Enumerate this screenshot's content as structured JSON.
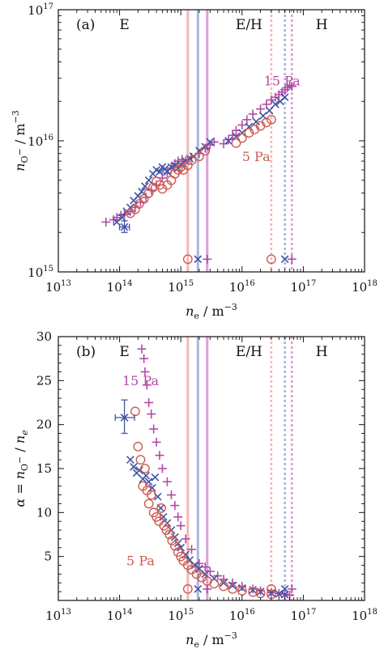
{
  "colors": {
    "pa5": "#d05a52",
    "pa10": "#3f55a4",
    "pa15": "#b24aa8",
    "pa5_line": "#f2b8b5",
    "pa10_line": "#aab4dd",
    "pa15_line": "#dc9fd6"
  },
  "chart_data": [
    {
      "type": "scatter",
      "panel_label": "(a)",
      "x_scale": "log",
      "y_scale": "log",
      "xlim": [
        10000000000000.0,
        1e+18
      ],
      "ylim": [
        1000000000000000.0,
        1e+17
      ],
      "xlabel": {
        "main": "n",
        "sub": "e",
        "unit": " / m",
        "sup": "−3"
      },
      "ylabel": {
        "main": "n",
        "sub": "O",
        "subsup": "−",
        "unit": " / m",
        "sup": "−3"
      },
      "x_ticks": [
        {
          "base": "10",
          "exp": "13"
        },
        {
          "base": "10",
          "exp": "14"
        },
        {
          "base": "10",
          "exp": "15"
        },
        {
          "base": "10",
          "exp": "16"
        },
        {
          "base": "10",
          "exp": "17"
        },
        {
          "base": "10",
          "exp": "18"
        }
      ],
      "y_ticks": [
        {
          "base": "10",
          "exp": "15"
        },
        {
          "base": "10",
          "exp": "16"
        },
        {
          "base": "10",
          "exp": "17"
        }
      ],
      "regions": [
        "E",
        "E/H",
        "H"
      ],
      "series_labels": [
        {
          "text": "15 Pa",
          "series": "pa15",
          "x": 4.5e+16,
          "y": 2.65e+16
        },
        {
          "text": "5 Pa",
          "series": "pa5",
          "x": 1.7e+16,
          "y": 7000000000000000.0
        }
      ],
      "vlines": [
        {
          "x": 1300000000000000.0,
          "series": "pa5",
          "style": "solid"
        },
        {
          "x": 1900000000000000.0,
          "series": "pa10",
          "style": "solid"
        },
        {
          "x": 2700000000000000.0,
          "series": "pa15",
          "style": "solid"
        },
        {
          "x": 3e+16,
          "series": "pa5",
          "style": "dotted"
        },
        {
          "x": 5e+16,
          "series": "pa10",
          "style": "dotted"
        },
        {
          "x": 6.5e+16,
          "series": "pa15",
          "style": "dotted"
        }
      ],
      "threshold_markers": [
        {
          "x": 1300000000000000.0,
          "y": 1250000000000000.0,
          "series": "pa5"
        },
        {
          "x": 1900000000000000.0,
          "y": 1250000000000000.0,
          "series": "pa10"
        },
        {
          "x": 2700000000000000.0,
          "y": 1250000000000000.0,
          "series": "pa15"
        },
        {
          "x": 3e+16,
          "y": 1250000000000000.0,
          "series": "pa5"
        },
        {
          "x": 5e+16,
          "y": 1250000000000000.0,
          "series": "pa10"
        },
        {
          "x": 6.5e+16,
          "y": 1250000000000000.0,
          "series": "pa15"
        }
      ],
      "error_bar": {
        "x": 120000000000000.0,
        "y": 2200000000000000.0,
        "xerr": [
          100000000000000.0,
          145000000000000.0
        ],
        "yerr": [
          2000000000000000.0,
          2450000000000000.0
        ],
        "series": "pa10"
      },
      "series": [
        {
          "id": "pa15",
          "marker": "plus",
          "x": [
            60000000000000.0,
            80000000000000.0,
            90000000000000.0,
            105000000000000.0,
            120000000000000.0,
            150000000000000.0,
            180000000000000.0,
            220000000000000.0,
            270000000000000.0,
            330000000000000.0,
            400000000000000.0,
            500000000000000.0,
            600000000000000.0,
            700000000000000.0,
            800000000000000.0,
            900000000000000.0,
            1050000000000000.0,
            1200000000000000.0,
            1500000000000000.0,
            2000000000000000.0,
            2500000000000000.0,
            3000000000000000.0,
            3500000000000000.0,
            5000000000000000.0,
            6000000000000000.0,
            7000000000000000.0,
            8000000000000000.0,
            1e+16,
            1.2e+16,
            1.5e+16,
            2e+16,
            2.5e+16,
            3e+16,
            3.5e+16,
            4e+16,
            4.5e+16,
            5e+16,
            5.5e+16,
            6e+16,
            6.5e+16
          ],
          "y": [
            2400000000000000.0,
            2500000000000000.0,
            2600000000000000.0,
            2700000000000000.0,
            2750000000000000.0,
            2900000000000000.0,
            3100000000000000.0,
            3400000000000000.0,
            3700000000000000.0,
            4200000000000000.0,
            4600000000000000.0,
            5200000000000000.0,
            5700000000000000.0,
            6200000000000000.0,
            6700000000000000.0,
            7000000000000000.0,
            7200000000000000.0,
            7000000000000000.0,
            7500000000000000.0,
            8000000000000000.0,
            8800000000000000.0,
            9300000000000000.0,
            9800000000000000.0,
            9500000000000000.0,
            1.02e+16,
            1.1e+16,
            1.2e+16,
            1.32e+16,
            1.45e+16,
            1.6e+16,
            1.75e+16,
            1.9e+16,
            2.05e+16,
            2.15e+16,
            2.25e+16,
            2.35e+16,
            2.45e+16,
            2.55e+16,
            2.65e+16,
            2.6e+16
          ]
        },
        {
          "id": "pa10",
          "marker": "cross",
          "x": [
            90000000000000.0,
            110000000000000.0,
            130000000000000.0,
            150000000000000.0,
            170000000000000.0,
            200000000000000.0,
            230000000000000.0,
            260000000000000.0,
            300000000000000.0,
            350000000000000.0,
            400000000000000.0,
            450000000000000.0,
            500000000000000.0,
            550000000000000.0,
            600000000000000.0,
            700000000000000.0,
            800000000000000.0,
            900000000000000.0,
            1000000000000000.0,
            1200000000000000.0,
            1400000000000000.0,
            1600000000000000.0,
            2000000000000000.0,
            2500000000000000.0,
            3000000000000000.0,
            6000000000000000.0,
            8000000000000000.0,
            1e+16,
            1.3e+16,
            1.7e+16,
            2.2e+16,
            2.8e+16,
            3.5e+16,
            4.2e+16,
            5e+16
          ],
          "y": [
            2400000000000000.0,
            2600000000000000.0,
            2900000000000000.0,
            3100000000000000.0,
            3500000000000000.0,
            3800000000000000.0,
            4100000000000000.0,
            4500000000000000.0,
            5000000000000000.0,
            5600000000000000.0,
            6000000000000000.0,
            5800000000000000.0,
            6300000000000000.0,
            6100000000000000.0,
            5800000000000000.0,
            6300000000000000.0,
            6500000000000000.0,
            6200000000000000.0,
            6600000000000000.0,
            7000000000000000.0,
            7300000000000000.0,
            7600000000000000.0,
            8400000000000000.0,
            9000000000000000.0,
            9800000000000000.0,
            1e+16,
            1.08e+16,
            1.15e+16,
            1.28e+16,
            1.4e+16,
            1.55e+16,
            1.7e+16,
            1.9e+16,
            2e+16,
            2.15e+16
          ]
        },
        {
          "id": "pa5",
          "marker": "circle",
          "x": [
            150000000000000.0,
            180000000000000.0,
            210000000000000.0,
            250000000000000.0,
            300000000000000.0,
            350000000000000.0,
            400000000000000.0,
            450000000000000.0,
            500000000000000.0,
            600000000000000.0,
            700000000000000.0,
            800000000000000.0,
            900000000000000.0,
            1000000000000000.0,
            1100000000000000.0,
            1300000000000000.0,
            1500000000000000.0,
            2000000000000000.0,
            2500000000000000.0,
            8000000000000000.0,
            1e+16,
            1.3e+16,
            1.6e+16,
            2e+16,
            2.5e+16,
            3e+16
          ],
          "y": [
            2800000000000000.0,
            3000000000000000.0,
            3300000000000000.0,
            3600000000000000.0,
            4000000000000000.0,
            4400000000000000.0,
            4900000000000000.0,
            4600000000000000.0,
            4300000000000000.0,
            4600000000000000.0,
            5000000000000000.0,
            5600000000000000.0,
            6000000000000000.0,
            6300000000000000.0,
            6000000000000000.0,
            6500000000000000.0,
            7100000000000000.0,
            7600000000000000.0,
            8400000000000000.0,
            9600000000000000.0,
            1.05e+16,
            1.15e+16,
            1.22e+16,
            1.3e+16,
            1.38e+16,
            1.45e+16
          ]
        }
      ]
    },
    {
      "type": "scatter",
      "panel_label": "(b)",
      "x_scale": "log",
      "y_scale": "linear",
      "xlim": [
        10000000000000.0,
        1e+18
      ],
      "ylim": [
        0,
        30
      ],
      "xlabel": {
        "main": "n",
        "sub": "e",
        "unit": " / m",
        "sup": "−3"
      },
      "ylabel": {
        "pre": "α = n",
        "sub": "O",
        "subsup": "−",
        "post": " / n",
        "sub2": "e"
      },
      "x_ticks": [
        {
          "base": "10",
          "exp": "13"
        },
        {
          "base": "10",
          "exp": "14"
        },
        {
          "base": "10",
          "exp": "15"
        },
        {
          "base": "10",
          "exp": "16"
        },
        {
          "base": "10",
          "exp": "17"
        },
        {
          "base": "10",
          "exp": "18"
        }
      ],
      "y_ticks": [
        "5",
        "10",
        "15",
        "20",
        "25",
        "30"
      ],
      "regions": [
        "E",
        "E/H",
        "H"
      ],
      "series_labels": [
        {
          "text": "15 Pa",
          "series": "pa15",
          "x": 220000000000000.0,
          "y": 24.5
        },
        {
          "text": "5 Pa",
          "series": "pa5",
          "x": 220000000000000.0,
          "y": 4.0
        }
      ],
      "vlines": [
        {
          "x": 1300000000000000.0,
          "series": "pa5",
          "style": "solid"
        },
        {
          "x": 1900000000000000.0,
          "series": "pa10",
          "style": "solid"
        },
        {
          "x": 2700000000000000.0,
          "series": "pa15",
          "style": "solid"
        },
        {
          "x": 3e+16,
          "series": "pa5",
          "style": "dotted"
        },
        {
          "x": 5e+16,
          "series": "pa10",
          "style": "dotted"
        },
        {
          "x": 6.5e+16,
          "series": "pa15",
          "style": "dotted"
        }
      ],
      "threshold_markers": [
        {
          "x": 1300000000000000.0,
          "y": 1.3,
          "series": "pa5"
        },
        {
          "x": 1900000000000000.0,
          "y": 1.3,
          "series": "pa10"
        },
        {
          "x": 2700000000000000.0,
          "y": 1.3,
          "series": "pa15"
        },
        {
          "x": 3e+16,
          "y": 1.3,
          "series": "pa5"
        },
        {
          "x": 5e+16,
          "y": 1.3,
          "series": "pa10"
        },
        {
          "x": 6.5e+16,
          "y": 1.3,
          "series": "pa15"
        }
      ],
      "error_bar": {
        "x": 120000000000000.0,
        "y": 20.8,
        "xerr": [
          85000000000000.0,
          175000000000000.0
        ],
        "yerr": [
          19.0,
          22.8
        ],
        "series": "pa10"
      },
      "series": [
        {
          "id": "pa15",
          "marker": "plus",
          "x": [
            230000000000000.0,
            250000000000000.0,
            260000000000000.0,
            280000000000000.0,
            300000000000000.0,
            330000000000000.0,
            360000000000000.0,
            400000000000000.0,
            450000000000000.0,
            500000000000000.0,
            600000000000000.0,
            700000000000000.0,
            800000000000000.0,
            900000000000000.0,
            1000000000000000.0,
            1200000000000000.0,
            1500000000000000.0,
            2000000000000000.0,
            2500000000000000.0,
            3000000000000000.0,
            4000000000000000.0,
            5000000000000000.0,
            7000000000000000.0,
            1e+16,
            1.5e+16,
            2e+16,
            3e+16,
            4e+16,
            5e+16,
            6e+16
          ],
          "y": [
            28.6,
            27.5,
            26.0,
            24.5,
            22.5,
            21.2,
            19.5,
            18.0,
            16.5,
            15.0,
            13.5,
            12.0,
            10.8,
            9.5,
            8.5,
            7.0,
            5.8,
            4.2,
            3.8,
            3.3,
            2.8,
            2.4,
            2.0,
            1.6,
            1.3,
            1.1,
            0.9,
            0.8,
            0.7,
            0.6
          ]
        },
        {
          "id": "pa10",
          "marker": "cross",
          "x": [
            150000000000000.0,
            170000000000000.0,
            190000000000000.0,
            210000000000000.0,
            240000000000000.0,
            270000000000000.0,
            300000000000000.0,
            340000000000000.0,
            380000000000000.0,
            420000000000000.0,
            470000000000000.0,
            520000000000000.0,
            600000000000000.0,
            700000000000000.0,
            800000000000000.0,
            900000000000000.0,
            1000000000000000.0,
            1200000000000000.0,
            1400000000000000.0,
            1700000000000000.0,
            2000000000000000.0,
            2500000000000000.0,
            3500000000000000.0,
            5000000000000000.0,
            7000000000000000.0,
            1e+16,
            1.5e+16,
            2e+16,
            3e+16,
            4e+16,
            5e+16
          ],
          "y": [
            16.0,
            15.2,
            14.5,
            14.8,
            13.8,
            14.2,
            13.5,
            12.8,
            14.0,
            11.8,
            10.5,
            9.5,
            8.8,
            8.0,
            7.2,
            6.5,
            6.0,
            5.2,
            4.6,
            4.0,
            3.6,
            3.0,
            2.5,
            2.0,
            1.7,
            1.4,
            1.2,
            1.0,
            0.85,
            0.75,
            0.65
          ]
        },
        {
          "id": "pa5",
          "marker": "circle",
          "x": [
            180000000000000.0,
            200000000000000.0,
            220000000000000.0,
            240000000000000.0,
            260000000000000.0,
            280000000000000.0,
            300000000000000.0,
            330000000000000.0,
            360000000000000.0,
            400000000000000.0,
            440000000000000.0,
            480000000000000.0,
            530000000000000.0,
            580000000000000.0,
            650000000000000.0,
            720000000000000.0,
            800000000000000.0,
            900000000000000.0,
            1000000000000000.0,
            1100000000000000.0,
            1300000000000000.0,
            1500000000000000.0,
            1800000000000000.0,
            2200000000000000.0,
            2700000000000000.0,
            3500000000000000.0,
            5000000000000000.0,
            7000000000000000.0,
            1e+16,
            1.5e+16,
            2e+16,
            3e+16
          ],
          "y": [
            21.5,
            17.5,
            16.0,
            13.0,
            15.0,
            12.5,
            11.0,
            12.0,
            10.0,
            9.5,
            9.0,
            10.5,
            8.5,
            8.0,
            7.5,
            6.8,
            6.2,
            5.5,
            5.0,
            4.5,
            4.0,
            3.5,
            3.0,
            2.6,
            2.2,
            1.9,
            1.6,
            1.3,
            1.1,
            0.95,
            0.8,
            0.7
          ]
        }
      ]
    }
  ]
}
